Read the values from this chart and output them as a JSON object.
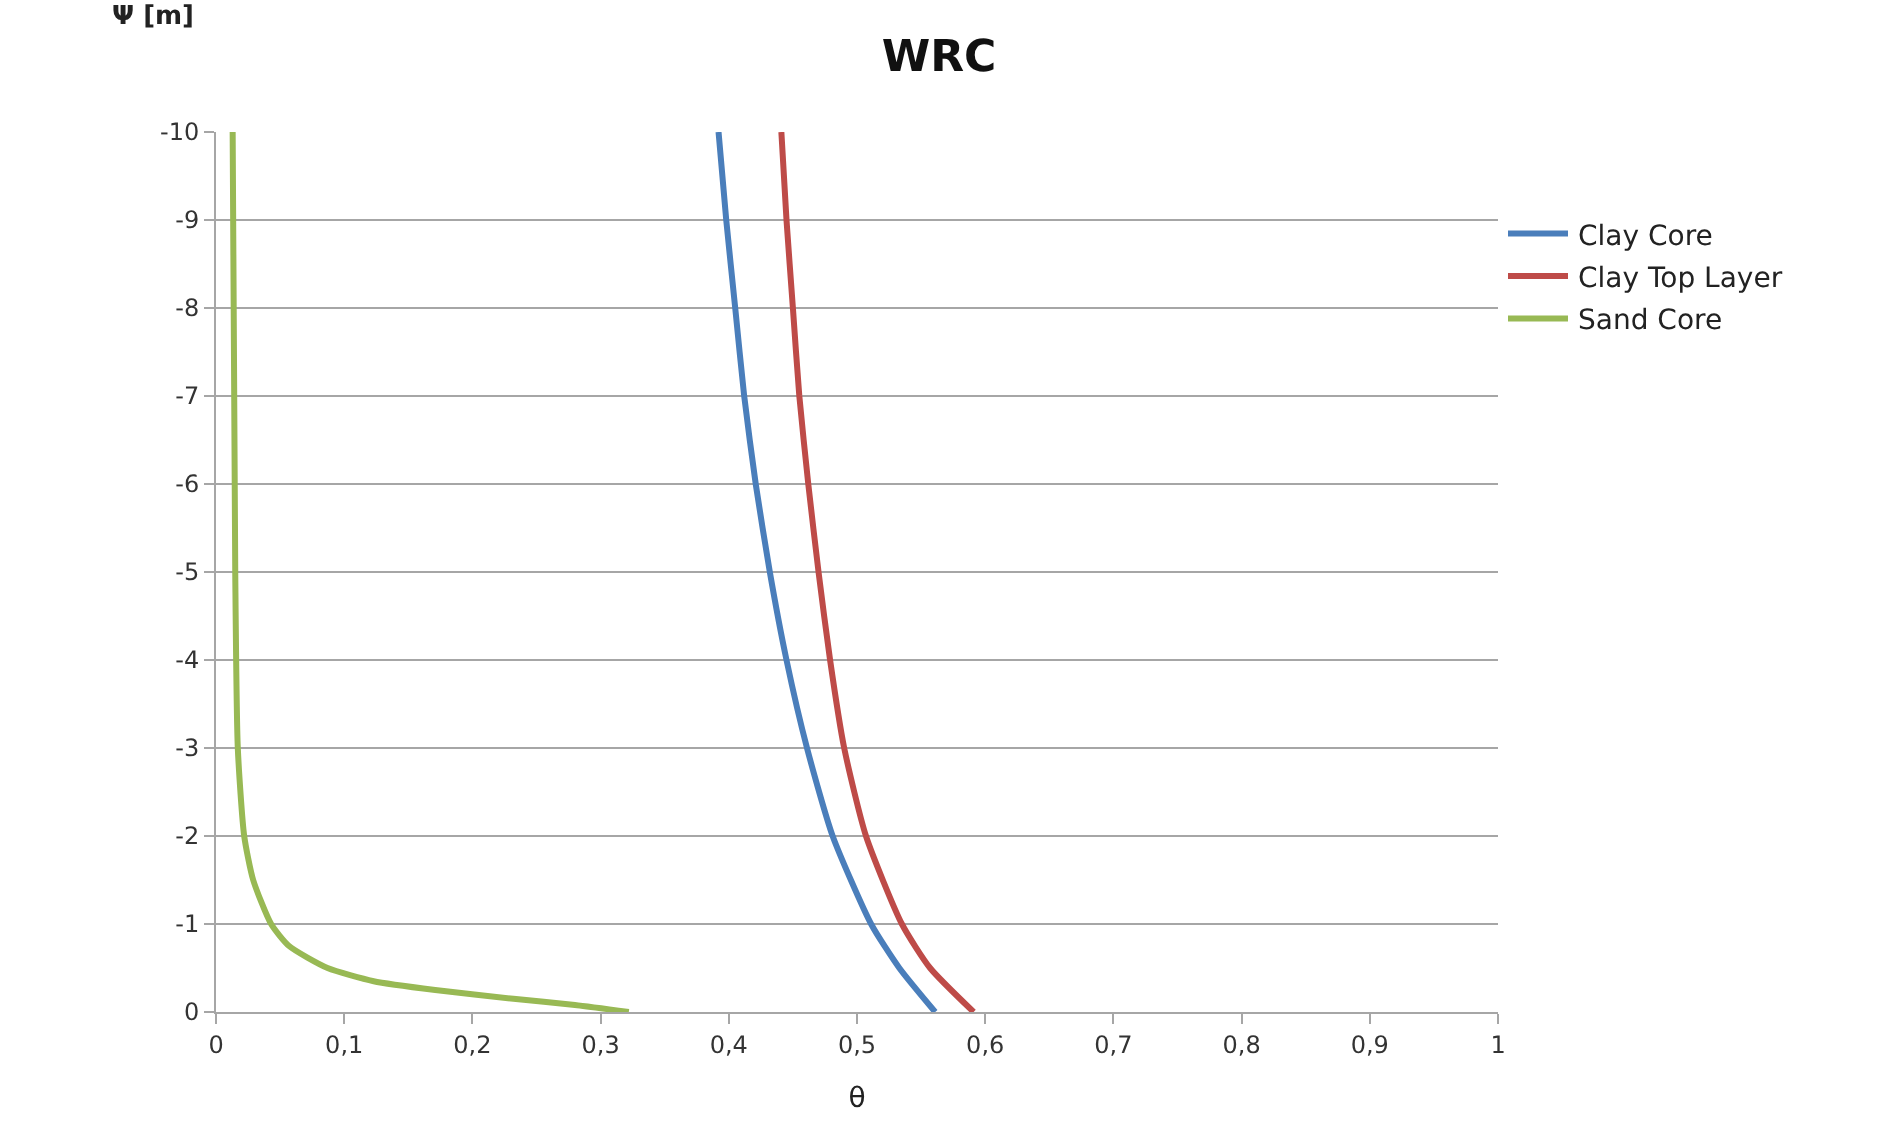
{
  "chart_data": {
    "type": "line",
    "title": "WRC",
    "xlabel": "θ",
    "ylabel": "Ψ [m]",
    "xlim": [
      0,
      1
    ],
    "xticks": [
      0,
      {
        "value": 0.1,
        "label": "0,1"
      },
      {
        "value": 0.2,
        "label": "0,2"
      },
      {
        "value": 0.3,
        "label": "0,3"
      },
      {
        "value": 0.4,
        "label": "0,4"
      },
      {
        "value": 0.5,
        "label": "0,5"
      },
      {
        "value": 0.6,
        "label": "0,6"
      },
      {
        "value": 0.7,
        "label": "0,7"
      },
      {
        "value": 0.8,
        "label": "0,8"
      },
      {
        "value": 0.9,
        "label": "0,9"
      },
      1
    ],
    "ylim": [
      0,
      -10
    ],
    "yticks": [
      0,
      -1,
      -2,
      -3,
      -4,
      -5,
      -6,
      -7,
      -8,
      -9,
      -10
    ],
    "grid": "y",
    "legend": "right",
    "marker": "none",
    "line_style": "solid",
    "series": [
      {
        "name": "Clay Core",
        "color": "#4a7ebb",
        "x": [
          0.392,
          0.398,
          0.405,
          0.412,
          0.421,
          0.432,
          0.445,
          0.461,
          0.481,
          0.511,
          0.533,
          0.561
        ],
        "values": [
          -10,
          -9,
          -8,
          -7,
          -6,
          -5,
          -4,
          -3,
          -2,
          -1,
          -0.5,
          0
        ]
      },
      {
        "name": "Clay Top Layer",
        "color": "#be4b48",
        "x": [
          0.441,
          0.445,
          0.45,
          0.455,
          0.462,
          0.47,
          0.479,
          0.49,
          0.507,
          0.535,
          0.557,
          0.591
        ],
        "values": [
          -10,
          -9,
          -8,
          -7,
          -6,
          -5,
          -4,
          -3,
          -2,
          -1,
          -0.5,
          0
        ]
      },
      {
        "name": "Sand Core",
        "color": "#98b954",
        "x": [
          0.013,
          0.015,
          0.017,
          0.022,
          0.029,
          0.043,
          0.057,
          0.087,
          0.123,
          0.171,
          0.232,
          0.28,
          0.322
        ],
        "values": [
          -10,
          -5,
          -3,
          -2,
          -1.5,
          -1,
          -0.75,
          -0.5,
          -0.35,
          -0.25,
          -0.15,
          -0.08,
          0
        ]
      }
    ]
  }
}
